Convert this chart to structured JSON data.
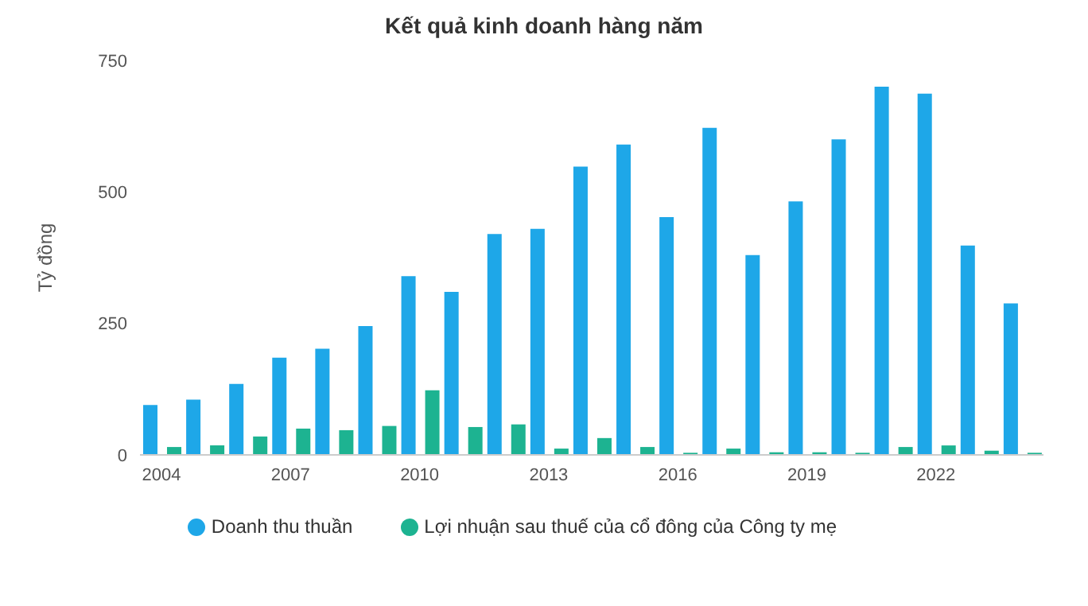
{
  "chart_data": {
    "type": "bar",
    "title": "Kết quả kinh doanh hàng năm",
    "ylabel": "Tỷ đồng",
    "categories": [
      "2004",
      null,
      null,
      "2007",
      null,
      null,
      "2010",
      null,
      null,
      "2013",
      null,
      null,
      "2016",
      null,
      null,
      "2019",
      null,
      null,
      "2022",
      null,
      null
    ],
    "series": [
      {
        "name": "Doanh thu thuần",
        "color": "#1ea7e8",
        "values": [
          95,
          105,
          135,
          185,
          202,
          245,
          340,
          310,
          420,
          430,
          548,
          590,
          452,
          622,
          380,
          482,
          600,
          700,
          687,
          398,
          288
        ]
      },
      {
        "name": "Lợi nhuận sau thuế của cổ đông của Công ty mẹ",
        "color": "#1db391",
        "values": [
          15,
          18,
          35,
          50,
          47,
          55,
          123,
          53,
          58,
          12,
          32,
          15,
          4,
          12,
          5,
          5,
          4,
          15,
          18,
          8,
          4
        ]
      }
    ],
    "ylim": [
      0,
      750
    ],
    "yticks": [
      0,
      250,
      500,
      750
    ],
    "grid": false,
    "legend": "bottom"
  }
}
